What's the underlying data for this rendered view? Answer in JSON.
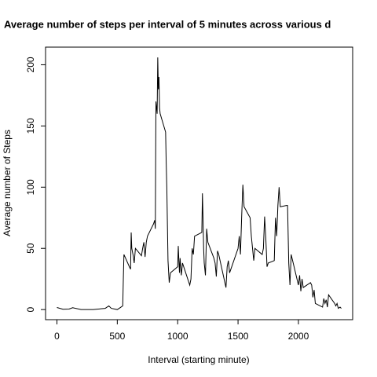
{
  "chart_data": {
    "type": "line",
    "title": "Average number of steps per interval of 5 minutes across various d",
    "xlabel": "Interval (starting minute)",
    "ylabel": "Average number of Steps",
    "x": [
      0,
      50,
      100,
      130,
      200,
      300,
      400,
      430,
      450,
      500,
      530,
      545,
      550,
      555,
      600,
      610,
      615,
      620,
      630,
      640,
      650,
      700,
      710,
      720,
      730,
      740,
      750,
      800,
      810,
      815,
      820,
      830,
      835,
      840,
      845,
      850,
      855,
      900,
      905,
      910,
      920,
      930,
      940,
      1000,
      1005,
      1010,
      1015,
      1020,
      1030,
      1040,
      1100,
      1110,
      1120,
      1130,
      1140,
      1200,
      1205,
      1210,
      1215,
      1220,
      1230,
      1240,
      1250,
      1300,
      1310,
      1320,
      1330,
      1340,
      1400,
      1410,
      1420,
      1430,
      1500,
      1510,
      1520,
      1530,
      1540,
      1550,
      1600,
      1610,
      1620,
      1630,
      1640,
      1700,
      1710,
      1720,
      1730,
      1740,
      1750,
      1800,
      1810,
      1820,
      1830,
      1840,
      1850,
      1900,
      1910,
      1920,
      1930,
      1940,
      2000,
      2010,
      2020,
      2030,
      2040,
      2100,
      2110,
      2120,
      2130,
      2140,
      2200,
      2210,
      2220,
      2230,
      2240,
      2250,
      2300,
      2310,
      2320,
      2330,
      2345,
      2355
    ],
    "series": [
      {
        "name": "Average number of Steps",
        "color": "#000000",
        "values": [
          1.7,
          0.3,
          0.4,
          1.5,
          0,
          0,
          1,
          3,
          1,
          0,
          2,
          3,
          25,
          45,
          35,
          33,
          63,
          50,
          45,
          38,
          50,
          44,
          50,
          55,
          43,
          55,
          60,
          70,
          73,
          66,
          170,
          160,
          206,
          180,
          190,
          165,
          160,
          145,
          120,
          100,
          40,
          22,
          30,
          35,
          52,
          40,
          30,
          42,
          28,
          38,
          20,
          25,
          50,
          45,
          60,
          63,
          95,
          75,
          50,
          38,
          28,
          66,
          55,
          42,
          38,
          27,
          48,
          45,
          18,
          35,
          40,
          30,
          50,
          60,
          45,
          76,
          102,
          84,
          75,
          60,
          50,
          40,
          50,
          45,
          50,
          76,
          58,
          35,
          38,
          40,
          75,
          60,
          85,
          100,
          84,
          85,
          85,
          38,
          20,
          45,
          20,
          28,
          15,
          25,
          18,
          22,
          20,
          10,
          16,
          5,
          2,
          9,
          5,
          8,
          2,
          12,
          5,
          3,
          5,
          1,
          2,
          1
        ]
      }
    ],
    "xlim": [
      -94.2,
      2449.2
    ],
    "xticks": [
      0,
      500,
      1000,
      1500,
      2000
    ],
    "ylim": [
      -8.24,
      214.4
    ],
    "yticks": [
      0,
      50,
      100,
      150,
      200
    ]
  }
}
